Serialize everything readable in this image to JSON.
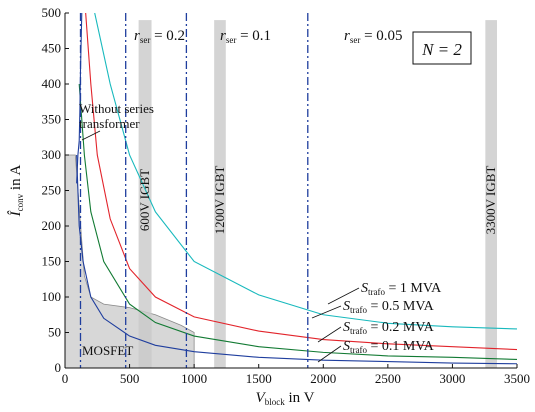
{
  "chart_data": {
    "type": "line",
    "xlabel_main": "V",
    "xlabel_sub": "block",
    "xlabel_unit": " in V",
    "ylabel_main": "Î",
    "ylabel_sub": "conv",
    "ylabel_unit": " in A",
    "xlim": [
      0,
      3500
    ],
    "ylim": [
      0,
      500
    ],
    "x_ticks": [
      0,
      500,
      1000,
      1500,
      2000,
      2500,
      3000,
      3500
    ],
    "y_ticks": [
      0,
      50,
      100,
      150,
      200,
      250,
      300,
      350,
      400,
      450,
      500
    ],
    "grid": false,
    "series": [
      {
        "name": "S_trafo = 1 MVA",
        "color": "#18b9bd",
        "points": [
          [
            230,
            500
          ],
          [
            350,
            400
          ],
          [
            500,
            300
          ],
          [
            700,
            220
          ],
          [
            1000,
            150
          ],
          [
            1500,
            103
          ],
          [
            2000,
            75
          ],
          [
            2500,
            63
          ],
          [
            3000,
            58
          ],
          [
            3500,
            55
          ]
        ]
      },
      {
        "name": "S_trafo = 0.5 MVA",
        "color": "#e2242b",
        "points": [
          [
            160,
            500
          ],
          [
            200,
            400
          ],
          [
            250,
            300
          ],
          [
            350,
            210
          ],
          [
            500,
            140
          ],
          [
            700,
            100
          ],
          [
            1000,
            72
          ],
          [
            1500,
            52
          ],
          [
            2000,
            40
          ],
          [
            2500,
            34
          ],
          [
            3000,
            30
          ],
          [
            3500,
            26
          ]
        ]
      },
      {
        "name": "S_trafo = 0.2 MVA",
        "color": "#127a33",
        "points": [
          [
            110,
            400
          ],
          [
            150,
            300
          ],
          [
            200,
            220
          ],
          [
            300,
            150
          ],
          [
            500,
            90
          ],
          [
            700,
            64
          ],
          [
            1000,
            45
          ],
          [
            1500,
            30
          ],
          [
            2000,
            22
          ],
          [
            2500,
            17
          ],
          [
            3000,
            15
          ],
          [
            3500,
            12
          ]
        ]
      },
      {
        "name": "S_trafo = 0.1 MVA",
        "color": "#1f3e9e",
        "points": [
          [
            90,
            300
          ],
          [
            110,
            200
          ],
          [
            140,
            150
          ],
          [
            200,
            100
          ],
          [
            300,
            70
          ],
          [
            500,
            45
          ],
          [
            700,
            32
          ],
          [
            1000,
            23
          ],
          [
            1500,
            15
          ],
          [
            2000,
            11
          ],
          [
            2500,
            9
          ],
          [
            3000,
            7
          ],
          [
            3500,
            6
          ]
        ]
      },
      {
        "name": "Without series transformer",
        "color": "#1f3e9e",
        "points": [
          [
            130,
            500
          ],
          [
            120,
            420
          ],
          [
            115,
            360
          ],
          [
            110,
            320
          ],
          [
            100,
            300
          ],
          [
            90,
            260
          ]
        ]
      }
    ],
    "vlines": [
      {
        "x": 470,
        "label_r": "r",
        "label_sub": "ser",
        "label_val": " = 0.2"
      },
      {
        "x": 940,
        "label_r": "r",
        "label_sub": "ser",
        "label_val": " = 0.1"
      },
      {
        "x": 1880,
        "label_r": "r",
        "label_sub": "ser",
        "label_val": " = 0.05"
      }
    ],
    "extra_vline_x": 120,
    "igbt_bands": [
      {
        "x0": 570,
        "x1": 670,
        "ymax": 490,
        "label": "600V IGBT"
      },
      {
        "x0": 1155,
        "x1": 1245,
        "ymax": 490,
        "label": "1200V IGBT"
      },
      {
        "x0": 3255,
        "x1": 3345,
        "ymax": 490,
        "label": "3300V IGBT"
      }
    ],
    "mosfet_region": {
      "points": [
        [
          0,
          0
        ],
        [
          0,
          300
        ],
        [
          80,
          300
        ],
        [
          150,
          130
        ],
        [
          200,
          100
        ],
        [
          300,
          90
        ],
        [
          500,
          85
        ],
        [
          700,
          75
        ],
        [
          900,
          60
        ],
        [
          1000,
          50
        ],
        [
          1000,
          0
        ]
      ],
      "label": "MOSFET"
    },
    "annotations": {
      "n_box": "N = 2",
      "without_series_line1": "Without series",
      "without_series_line2": "transformer",
      "s_label_prefix": "S",
      "s_label_sub": "trafo"
    }
  }
}
